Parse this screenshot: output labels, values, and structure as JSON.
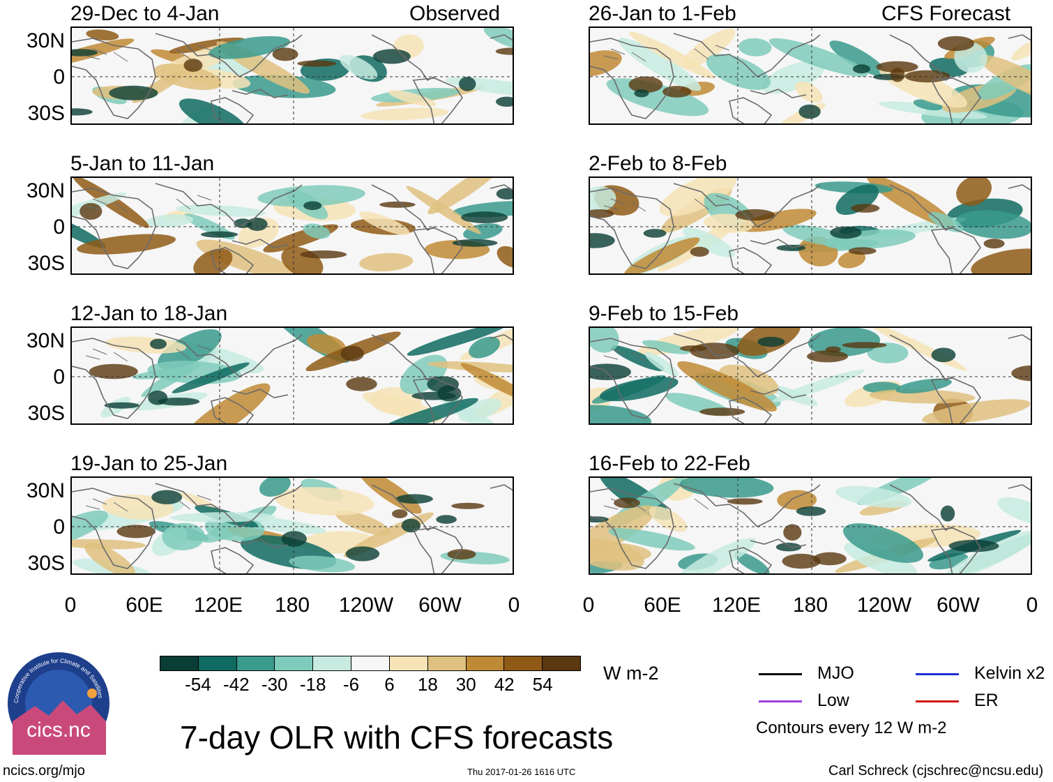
{
  "chart_data": {
    "type": "heatmap",
    "title": "7-day OLR with CFS forecasts",
    "variable": "OLR anomaly",
    "units": "W m-2",
    "panel_headers": {
      "left": "Observed",
      "right": "CFS Forecast"
    },
    "y_ticks": [
      "30N",
      "0",
      "30S"
    ],
    "x_ticks": [
      "0",
      "60E",
      "120E",
      "180",
      "120W",
      "60W",
      "0"
    ],
    "observed_panels": [
      "29-Dec to 4-Jan",
      "5-Jan to 11-Jan",
      "12-Jan to 18-Jan",
      "19-Jan to 25-Jan"
    ],
    "forecast_panels": [
      "26-Jan to 1-Feb",
      "2-Feb to 8-Feb",
      "9-Feb to 15-Feb",
      "16-Feb to 22-Feb"
    ],
    "colorbar": {
      "labels": [
        "-54",
        "-42",
        "-30",
        "-18",
        "-6",
        "6",
        "18",
        "30",
        "42",
        "54"
      ],
      "colors": [
        "#0a3d35",
        "#0f6b61",
        "#3a9a8d",
        "#7fcbbb",
        "#c7ebe1",
        "#f7f7f7",
        "#f6e3b6",
        "#dfc17f",
        "#bf8a35",
        "#8f5a16",
        "#5a3810"
      ]
    },
    "legend": [
      {
        "label": "MJO",
        "color": "#000000"
      },
      {
        "label": "Kelvin x2",
        "color": "#1f2fd6"
      },
      {
        "label": "Low",
        "color": "#a040e0"
      },
      {
        "label": "ER",
        "color": "#d01515"
      }
    ],
    "contour_note": "Contours every 12 W m-2"
  },
  "footer": {
    "logo_text": "cics.nc",
    "logo_ring": "Cooperative Institute for Climate and Satellites",
    "website": "ncics.org/mjo",
    "timestamp": "Thu 2017-01-26 1616 UTC",
    "author": "Carl Schreck (cjschrec@ncsu.edu)"
  }
}
